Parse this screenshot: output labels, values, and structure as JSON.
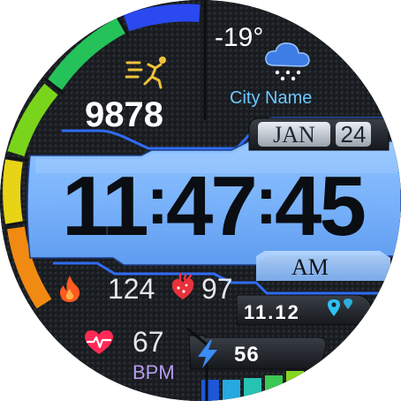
{
  "weather": {
    "temperature": "-19°",
    "city": "City Name",
    "icon": "cloud-snow-icon"
  },
  "steps": {
    "value": "9878",
    "icon": "running-icon"
  },
  "date": {
    "month": "JAN",
    "day": "24"
  },
  "time": {
    "hours": "11",
    "minutes": "47",
    "seconds": "45",
    "separator": ":",
    "ampm": "AM"
  },
  "calories": {
    "value": "124",
    "icon": "flame-icon"
  },
  "stress": {
    "value": "97",
    "icon": "heart-organ-icon"
  },
  "distance": {
    "value": "11.12",
    "icon": "location-pin-icon"
  },
  "heart_rate": {
    "value": "67",
    "unit": "BPM",
    "icon": "heart-pulse-icon"
  },
  "battery": {
    "value": "56",
    "icon": "lightning-bolt-icon"
  },
  "colors": {
    "clock_panel": "#7fb6fb",
    "accent_blue": "#2f6cf4",
    "city_text": "#6ec7ff",
    "bpm_text": "#b99cf3",
    "heart": "#ff2a55",
    "flame": "#ff5a1f"
  }
}
